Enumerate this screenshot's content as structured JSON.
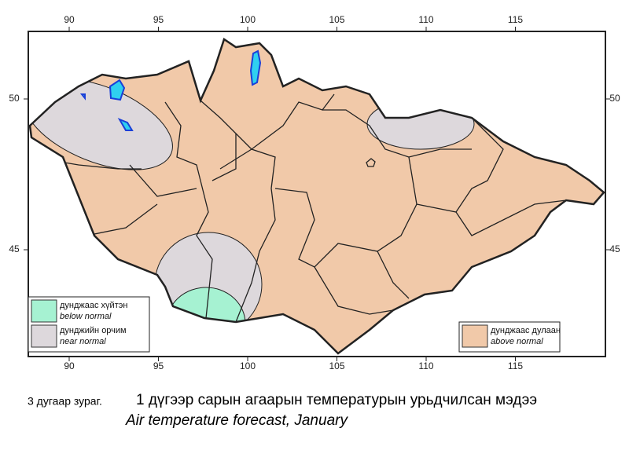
{
  "longitude_ticks": [
    90,
    95,
    100,
    105,
    110,
    115
  ],
  "latitude_ticks": [
    50,
    45
  ],
  "legend": [
    {
      "label": "дунджаас хүйтэн",
      "label_en": "below normal",
      "color": "#a6f2d2"
    },
    {
      "label": "дунджийн орчим",
      "label_en": "near normal",
      "color": "#ddd8dc"
    },
    {
      "label": "дунджаас дулаан",
      "label_en": "above normal",
      "color": "#f1c9a9"
    }
  ],
  "caption": {
    "number": "3 дугаар зураг.",
    "title_mn": "1 дүгээр сарын агаарын температурын урьдчилсан мэдээ",
    "title_en": "Air temperature forecast, January"
  }
}
